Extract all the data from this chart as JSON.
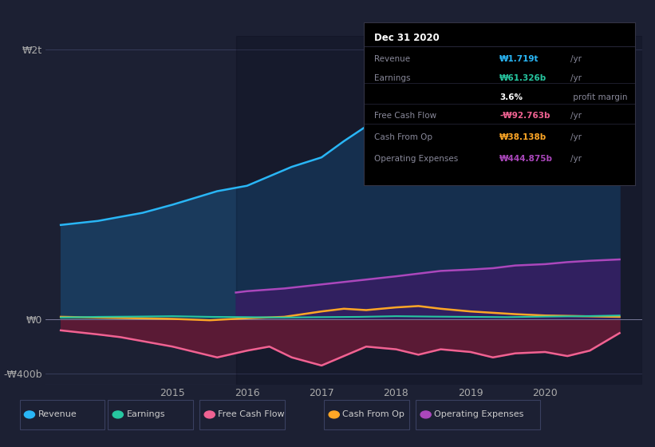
{
  "bg_color": "#1c2033",
  "plot_bg_color": "#1c2033",
  "title": "Dec 31 2020",
  "ylabel_top": "₩2t",
  "ylabel_zero": "₩0",
  "ylabel_bottom": "-₩400b",
  "x_ticks": [
    2015,
    2016,
    2017,
    2018,
    2019,
    2020
  ],
  "x_min": 2013.3,
  "x_max": 2021.3,
  "y_min": -480,
  "y_max": 2100,
  "revenue_color": "#29b6f6",
  "earnings_color": "#26c6a0",
  "fcf_color": "#f06292",
  "cashfromop_color": "#ffa726",
  "opex_color": "#ab47bc",
  "revenue_fill_color": "#1a3a5c",
  "opex_fill_color": "#312060",
  "fcf_fill_color": "#5a1a35",
  "legend_labels": [
    "Revenue",
    "Earnings",
    "Free Cash Flow",
    "Cash From Op",
    "Operating Expenses"
  ],
  "revenue": [
    [
      2013.5,
      700
    ],
    [
      2014.0,
      730
    ],
    [
      2014.3,
      760
    ],
    [
      2014.6,
      790
    ],
    [
      2015.0,
      850
    ],
    [
      2015.3,
      900
    ],
    [
      2015.6,
      950
    ],
    [
      2016.0,
      990
    ],
    [
      2016.3,
      1060
    ],
    [
      2016.6,
      1130
    ],
    [
      2017.0,
      1200
    ],
    [
      2017.3,
      1320
    ],
    [
      2017.6,
      1430
    ],
    [
      2018.0,
      1490
    ],
    [
      2018.3,
      1530
    ],
    [
      2018.6,
      1520
    ],
    [
      2019.0,
      1490
    ],
    [
      2019.3,
      1500
    ],
    [
      2019.6,
      1530
    ],
    [
      2020.0,
      1580
    ],
    [
      2020.3,
      1650
    ],
    [
      2020.6,
      1750
    ],
    [
      2021.0,
      1900
    ]
  ],
  "earnings": [
    [
      2013.5,
      15
    ],
    [
      2014.0,
      20
    ],
    [
      2014.5,
      22
    ],
    [
      2015.0,
      25
    ],
    [
      2015.5,
      20
    ],
    [
      2016.0,
      18
    ],
    [
      2016.5,
      15
    ],
    [
      2017.0,
      18
    ],
    [
      2017.5,
      20
    ],
    [
      2018.0,
      25
    ],
    [
      2018.5,
      22
    ],
    [
      2019.0,
      20
    ],
    [
      2019.5,
      18
    ],
    [
      2020.0,
      22
    ],
    [
      2020.5,
      25
    ],
    [
      2021.0,
      30
    ]
  ],
  "fcf": [
    [
      2013.5,
      -80
    ],
    [
      2014.0,
      -110
    ],
    [
      2014.3,
      -130
    ],
    [
      2014.6,
      -160
    ],
    [
      2015.0,
      -200
    ],
    [
      2015.3,
      -240
    ],
    [
      2015.6,
      -280
    ],
    [
      2016.0,
      -230
    ],
    [
      2016.3,
      -200
    ],
    [
      2016.6,
      -280
    ],
    [
      2017.0,
      -340
    ],
    [
      2017.3,
      -270
    ],
    [
      2017.6,
      -200
    ],
    [
      2018.0,
      -220
    ],
    [
      2018.3,
      -260
    ],
    [
      2018.6,
      -220
    ],
    [
      2019.0,
      -240
    ],
    [
      2019.3,
      -280
    ],
    [
      2019.6,
      -250
    ],
    [
      2020.0,
      -240
    ],
    [
      2020.3,
      -270
    ],
    [
      2020.6,
      -230
    ],
    [
      2021.0,
      -100
    ]
  ],
  "cashfromop": [
    [
      2013.5,
      20
    ],
    [
      2014.0,
      15
    ],
    [
      2014.5,
      10
    ],
    [
      2015.0,
      5
    ],
    [
      2015.5,
      -5
    ],
    [
      2016.0,
      10
    ],
    [
      2016.5,
      20
    ],
    [
      2017.0,
      60
    ],
    [
      2017.3,
      80
    ],
    [
      2017.6,
      70
    ],
    [
      2018.0,
      90
    ],
    [
      2018.3,
      100
    ],
    [
      2018.6,
      80
    ],
    [
      2019.0,
      60
    ],
    [
      2019.3,
      50
    ],
    [
      2019.6,
      40
    ],
    [
      2020.0,
      30
    ],
    [
      2020.5,
      25
    ],
    [
      2021.0,
      20
    ]
  ],
  "opex": [
    [
      2015.85,
      200
    ],
    [
      2016.0,
      210
    ],
    [
      2016.5,
      230
    ],
    [
      2017.0,
      260
    ],
    [
      2017.5,
      290
    ],
    [
      2018.0,
      320
    ],
    [
      2018.3,
      340
    ],
    [
      2018.6,
      360
    ],
    [
      2019.0,
      370
    ],
    [
      2019.3,
      380
    ],
    [
      2019.6,
      400
    ],
    [
      2020.0,
      410
    ],
    [
      2020.3,
      425
    ],
    [
      2020.6,
      435
    ],
    [
      2021.0,
      445
    ]
  ],
  "tooltip": {
    "title": "Dec 31 2020",
    "rows": [
      {
        "label": "Revenue",
        "value": "₩1.719t",
        "unit": "/yr",
        "value_color": "#29b6f6",
        "has_divider": true
      },
      {
        "label": "Earnings",
        "value": "₩61.326b",
        "unit": "/yr",
        "value_color": "#26c6a0",
        "has_divider": false
      },
      {
        "label": "",
        "value": "3.6%",
        "unit": " profit margin",
        "value_color": "#ffffff",
        "has_divider": true
      },
      {
        "label": "Free Cash Flow",
        "value": "-₩92.763b",
        "unit": "/yr",
        "value_color": "#f06292",
        "has_divider": true
      },
      {
        "label": "Cash From Op",
        "value": "₩38.138b",
        "unit": "/yr",
        "value_color": "#ffa726",
        "has_divider": true
      },
      {
        "label": "Operating Expenses",
        "value": "₩444.875b",
        "unit": "/yr",
        "value_color": "#ab47bc",
        "has_divider": false
      }
    ]
  }
}
